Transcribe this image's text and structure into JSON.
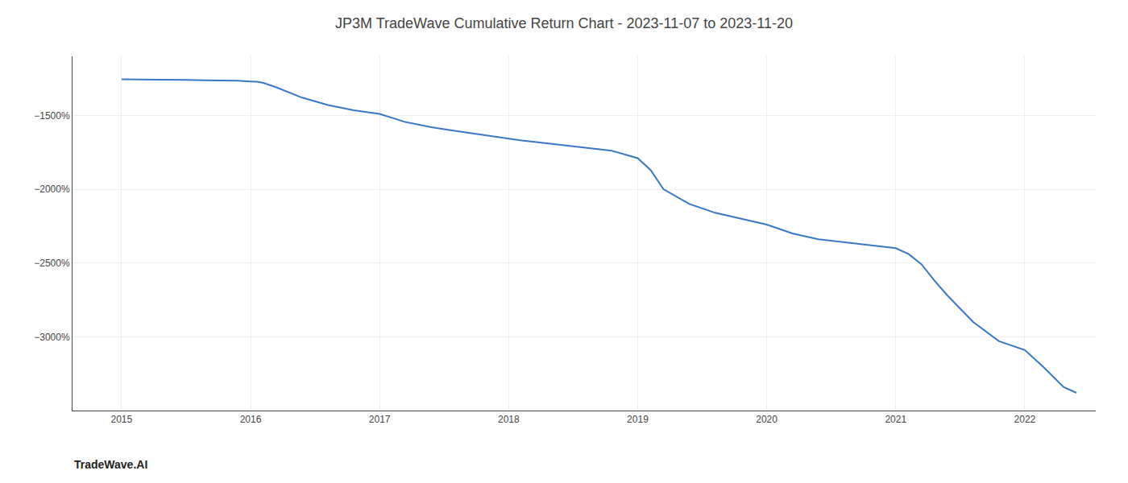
{
  "chart_data": {
    "type": "line",
    "title": "JP3M TradeWave Cumulative Return Chart - 2023-11-07 to 2023-11-20",
    "annotations": [
      "TradeWave.AI"
    ],
    "color": "#3878c8",
    "grid": true,
    "x": [
      2015.0,
      2015.05,
      2015.1,
      2015.2,
      2015.3,
      2015.5,
      2015.7,
      2015.9,
      2016.0,
      2016.05,
      2016.1,
      2016.2,
      2016.4,
      2016.6,
      2016.8,
      2017.0,
      2017.2,
      2017.4,
      2017.55,
      2017.7,
      2017.85,
      2018.0,
      2018.1,
      2018.2,
      2018.3,
      2018.4,
      2018.6,
      2018.8,
      2019.0,
      2019.1,
      2019.2,
      2019.4,
      2019.6,
      2019.8,
      2020.0,
      2020.1,
      2020.2,
      2020.4,
      2020.6,
      2020.8,
      2021.0,
      2021.1,
      2021.2,
      2021.3,
      2021.4,
      2021.6,
      2021.8,
      2022.0,
      2022.15,
      2022.3,
      2022.4
    ],
    "values": [
      -1255,
      -1255,
      -1255,
      -1255,
      -1258,
      -1260,
      -1262,
      -1265,
      -1270,
      -1272,
      -1280,
      -1310,
      -1380,
      -1430,
      -1465,
      -1490,
      -1545,
      -1580,
      -1600,
      -1620,
      -1640,
      -1660,
      -1670,
      -1680,
      -1690,
      -1700,
      -1720,
      -1740,
      -1790,
      -1870,
      -2000,
      -2100,
      -2160,
      -2200,
      -2240,
      -2270,
      -2300,
      -2340,
      -2360,
      -2380,
      -2400,
      -2440,
      -2510,
      -2620,
      -2720,
      -2900,
      -3030,
      -3090,
      -3210,
      -3340,
      -3380
    ],
    "xlim": [
      2014.62,
      2022.55
    ],
    "xticks": [
      2015,
      2016,
      2017,
      2018,
      2019,
      2020,
      2021,
      2022
    ],
    "ylim": [
      -3500,
      -1100
    ],
    "yticks": [
      {
        "value": -3000,
        "label": "−3000%"
      },
      {
        "value": -2500,
        "label": "−2500%"
      },
      {
        "value": -2000,
        "label": "−2000%"
      },
      {
        "value": -1500,
        "label": "−1500%"
      }
    ]
  }
}
